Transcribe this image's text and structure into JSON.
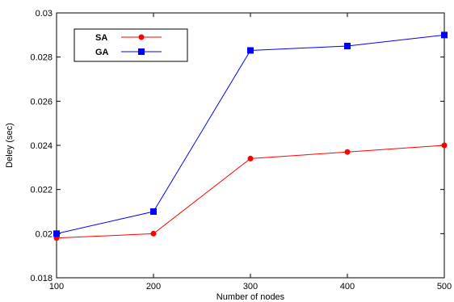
{
  "chart_data": {
    "type": "line",
    "title": "",
    "xlabel": "Number of nodes",
    "ylabel": "Deley (sec)",
    "x": [
      100,
      200,
      300,
      400,
      500
    ],
    "xlim": [
      100,
      500
    ],
    "ylim": [
      0.018,
      0.03
    ],
    "xticks": [
      100,
      200,
      300,
      400,
      500
    ],
    "yticks": [
      0.018,
      0.02,
      0.022,
      0.024,
      0.026,
      0.028,
      0.03
    ],
    "ytick_labels": [
      "0.018",
      "0.02",
      "0.022",
      "0.024",
      "0.026",
      "0.028",
      "0.03"
    ],
    "xtick_labels": [
      "100",
      "200",
      "300",
      "400",
      "500"
    ],
    "grid": false,
    "legend": "top-left",
    "series": [
      {
        "name": "SA",
        "values": [
          0.0198,
          0.02,
          0.0234,
          0.0237,
          0.024
        ],
        "color": "#ff0000",
        "marker": "circle"
      },
      {
        "name": "GA",
        "values": [
          0.02,
          0.021,
          0.0283,
          0.0285,
          0.029
        ],
        "color": "#0000ff",
        "marker": "square"
      }
    ]
  }
}
